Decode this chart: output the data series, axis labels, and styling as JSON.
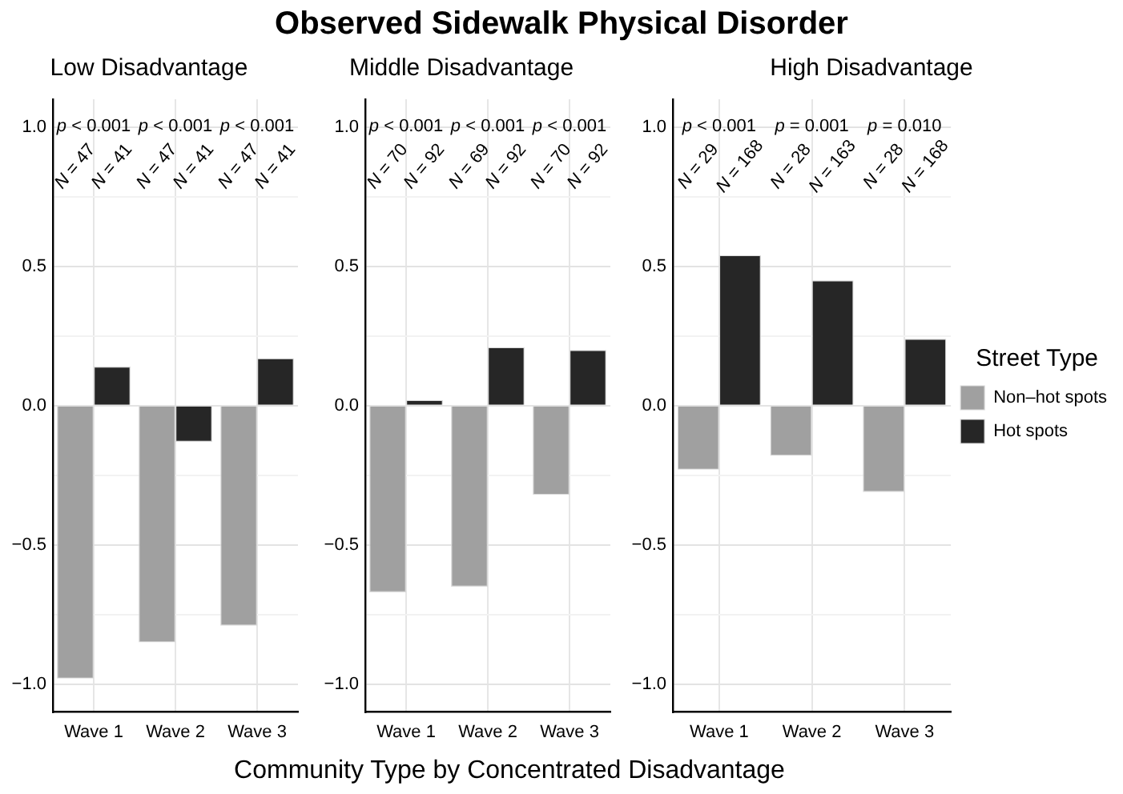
{
  "chart_data": [
    {
      "type": "bar",
      "title": "Low Disadvantage",
      "categories": [
        "Wave 1",
        "Wave 2",
        "Wave 3"
      ],
      "series": [
        {
          "color": "#a0a0a0",
          "values": [
            -0.98,
            -0.85,
            -0.79
          ]
        },
        {
          "color": "#262626",
          "values": [
            0.14,
            -0.13,
            0.17
          ]
        }
      ],
      "ylim": [
        -1.1,
        1.1
      ],
      "yticks": [
        {
          "value": 1,
          "label": "1.0"
        },
        {
          "value": 0.75,
          "label": null
        },
        {
          "value": 0.5,
          "label": "0.5"
        },
        {
          "value": 0.25,
          "label": null
        },
        {
          "value": 0,
          "label": "0.0"
        },
        {
          "value": -0.25,
          "label": null
        },
        {
          "value": -0.5,
          "label": "−0.5"
        },
        {
          "value": -0.75,
          "label": null
        },
        {
          "value": -1,
          "label": "−1.0"
        }
      ],
      "grid": true,
      "legend": false,
      "annotations": [
        "p < 0.001",
        "p < 0.001",
        "p < 0.001",
        "N = 47",
        "N = 41",
        "N = 47",
        "N = 41",
        "N = 47",
        "N = 41"
      ]
    },
    {
      "type": "bar",
      "title": "Middle Disadvantage",
      "xlabel": "Community Type by Concentrated Disadvantage",
      "categories": [
        "Wave 1",
        "Wave 2",
        "Wave 3"
      ],
      "series": [
        {
          "color": "#a0a0a0",
          "values": [
            -0.67,
            -0.65,
            -0.32
          ]
        },
        {
          "color": "#262626",
          "values": [
            0.02,
            0.21,
            0.2
          ]
        }
      ],
      "ylim": [
        -1.1,
        1.1
      ],
      "yticks": [
        {
          "value": 1,
          "label": "1.0"
        },
        {
          "value": 0.75,
          "label": null
        },
        {
          "value": 0.5,
          "label": "0.5"
        },
        {
          "value": 0.25,
          "label": null
        },
        {
          "value": 0,
          "label": "0.0"
        },
        {
          "value": -0.25,
          "label": null
        },
        {
          "value": -0.5,
          "label": "−0.5"
        },
        {
          "value": -0.75,
          "label": null
        },
        {
          "value": -1,
          "label": "−1.0"
        }
      ],
      "grid": true,
      "legend": false,
      "annotations": [
        "p < 0.001",
        "p < 0.001",
        "p < 0.001",
        "N = 70",
        "N = 92",
        "N = 69",
        "N = 92",
        "N = 70",
        "N = 92"
      ]
    },
    {
      "type": "bar",
      "title": "High Disadvantage",
      "subtitle": "Observed Sidewalk Physical Disorder",
      "categories": [
        "Wave 1",
        "Wave 2",
        "Wave 3"
      ],
      "series": [
        {
          "name": "Non–hot spots",
          "color": "#a0a0a0",
          "values": [
            -0.23,
            -0.18,
            -0.31
          ]
        },
        {
          "name": "Hot spots",
          "color": "#262626",
          "values": [
            0.54,
            0.45,
            0.24
          ]
        }
      ],
      "ylim": [
        -1.1,
        1.1
      ],
      "yticks": [
        {
          "value": 1,
          "label": "1.0"
        },
        {
          "value": 0.75,
          "label": null
        },
        {
          "value": 0.5,
          "label": "0.5"
        },
        {
          "value": 0.25,
          "label": null
        },
        {
          "value": 0,
          "label": "0.0"
        },
        {
          "value": -0.25,
          "label": null
        },
        {
          "value": -0.5,
          "label": "−0.5"
        },
        {
          "value": -0.75,
          "label": null
        },
        {
          "value": -1,
          "label": "−1.0"
        }
      ],
      "grid": true,
      "legend": "right",
      "legend_title": "Street Type",
      "annotations": [
        "p < 0.001",
        "p = 0.001",
        "p = 0.010",
        "N = 29",
        "N = 168",
        "N = 28",
        "N = 163",
        "N = 28",
        "N = 168"
      ]
    }
  ]
}
